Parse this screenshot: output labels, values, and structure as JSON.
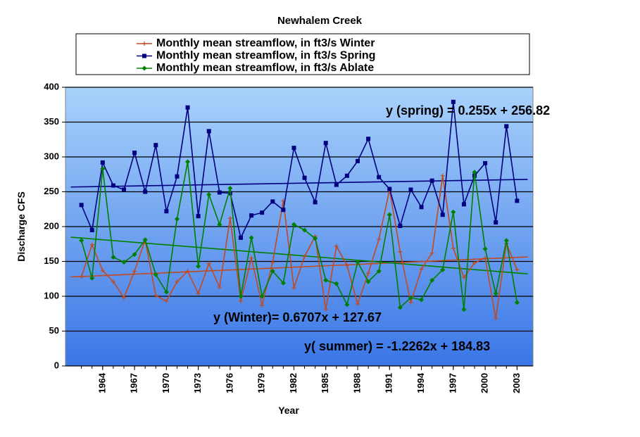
{
  "chart_data": {
    "type": "line",
    "title": "Newhalem Creek",
    "xlabel": "Year",
    "ylabel": "Discharge CFS",
    "x": [
      1962,
      1963,
      1964,
      1965,
      1966,
      1967,
      1968,
      1969,
      1970,
      1971,
      1972,
      1973,
      1974,
      1975,
      1976,
      1977,
      1978,
      1979,
      1980,
      1981,
      1982,
      1983,
      1984,
      1985,
      1986,
      1987,
      1988,
      1989,
      1990,
      1991,
      1992,
      1993,
      1994,
      1995,
      1996,
      1997,
      1998,
      1999,
      2000,
      2001,
      2002,
      2003
    ],
    "xlim": [
      1960.5,
      2004.5
    ],
    "xticks": [
      1964,
      1967,
      1970,
      1973,
      1976,
      1979,
      1982,
      1985,
      1988,
      1991,
      1994,
      1997,
      2000,
      2003
    ],
    "ylim": [
      0,
      400
    ],
    "yticks": [
      0,
      50,
      100,
      150,
      200,
      250,
      300,
      350,
      400
    ],
    "grid": true,
    "series": [
      {
        "name": "Monthly mean streamflow, in ft3/s Winter",
        "color": "#c04a22",
        "marker": "plus",
        "values": [
          128,
          174,
          137,
          121,
          98,
          136,
          181,
          101,
          93,
          121,
          136,
          104,
          147,
          113,
          212,
          93,
          155,
          87,
          149,
          237,
          112,
          157,
          186,
          81,
          172,
          144,
          89,
          133,
          182,
          253,
          164,
          91,
          139,
          162,
          273,
          169,
          127,
          148,
          155,
          68,
          176,
          138
        ]
      },
      {
        "name": "Monthly mean streamflow, in ft3/s Spring",
        "color": "#000080",
        "marker": "square",
        "values": [
          231,
          195,
          292,
          259,
          253,
          306,
          250,
          317,
          222,
          272,
          371,
          215,
          337,
          249,
          248,
          184,
          216,
          220,
          236,
          224,
          313,
          270,
          235,
          320,
          260,
          273,
          294,
          326,
          271,
          254,
          201,
          253,
          228,
          266,
          217,
          379,
          232,
          273,
          291,
          206,
          344,
          237
        ]
      },
      {
        "name": "Monthly mean streamflow, in ft3/s Ablate",
        "color": "#008000",
        "marker": "diamond",
        "values": [
          180,
          126,
          283,
          156,
          149,
          160,
          181,
          131,
          106,
          211,
          293,
          143,
          246,
          203,
          255,
          100,
          184,
          100,
          136,
          119,
          203,
          195,
          183,
          123,
          118,
          88,
          149,
          121,
          136,
          217,
          84,
          98,
          95,
          123,
          138,
          221,
          81,
          278,
          168,
          104,
          180,
          91
        ]
      }
    ],
    "trendlines": [
      {
        "color": "#c04a22",
        "slope": 0.6707,
        "intercept": 127.67,
        "label": "y (Winter)= 0.6707x + 127.67"
      },
      {
        "color": "#000080",
        "slope": 0.255,
        "intercept": 256.82,
        "label": "y (spring) = 0.255x + 256.82"
      },
      {
        "color": "#008000",
        "slope": -1.2262,
        "intercept": 184.83,
        "label": "y( summer) = -1.2262x + 184.83"
      }
    ]
  }
}
